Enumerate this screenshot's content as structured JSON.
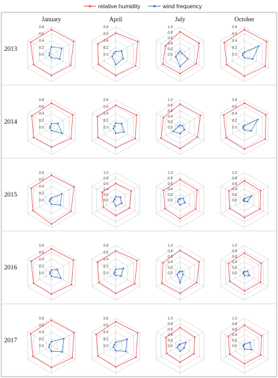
{
  "legend": {
    "relative_humidity": "relative humidity",
    "wind_frequency": "wind frequency"
  },
  "colors": {
    "humidity": "#e8474b",
    "wind": "#2f6fc0",
    "grid": "#bdbdbd"
  },
  "chart_data": {
    "type": "radar",
    "months": [
      "January",
      "April",
      "July",
      "October"
    ],
    "years": [
      "2013",
      "2014",
      "2015",
      "2016",
      "2017"
    ],
    "axes_count": 6,
    "panels": [
      {
        "year": "2013",
        "month": "January",
        "rmax": 0.8,
        "ticks": [
          "0.8",
          "0.6",
          "0.4",
          "0.2",
          "0.0"
        ],
        "humidity": [
          0.72,
          0.75,
          0.65,
          0.62,
          0.6,
          0.7
        ],
        "wind": [
          0.22,
          0.35,
          0.28,
          0.1,
          0.07,
          0.06
        ]
      },
      {
        "year": "2013",
        "month": "April",
        "rmax": 0.8,
        "ticks": [
          "0.8",
          "0.6",
          "0.4",
          "0.2",
          "0.0"
        ],
        "humidity": [
          0.62,
          0.74,
          0.67,
          0.62,
          0.58,
          0.6
        ],
        "wind": [
          0.08,
          0.2,
          0.25,
          0.3,
          0.12,
          0.06
        ]
      },
      {
        "year": "2013",
        "month": "July",
        "rmax": 1.0,
        "ticks": [
          "1.0",
          "0.8",
          "0.6",
          "0.4",
          "0.2",
          "0.0"
        ],
        "humidity": [
          0.82,
          0.8,
          0.68,
          0.7,
          0.72,
          0.62
        ],
        "wind": [
          0.12,
          0.08,
          0.32,
          0.45,
          0.18,
          0.08
        ]
      },
      {
        "year": "2013",
        "month": "October",
        "rmax": 0.8,
        "ticks": [
          "0.8",
          "0.6",
          "0.4",
          "0.2",
          "0.0"
        ],
        "humidity": [
          0.72,
          0.74,
          0.7,
          0.64,
          0.6,
          0.68
        ],
        "wind": [
          0.06,
          0.48,
          0.28,
          0.1,
          0.06,
          0.05
        ]
      },
      {
        "year": "2014",
        "month": "January",
        "rmax": 0.8,
        "ticks": [
          "0.8",
          "0.6",
          "0.4",
          "0.2",
          "0.0"
        ],
        "humidity": [
          0.7,
          0.72,
          0.66,
          0.58,
          0.6,
          0.66
        ],
        "wind": [
          0.1,
          0.22,
          0.36,
          0.1,
          0.05,
          0.04
        ]
      },
      {
        "year": "2014",
        "month": "April",
        "rmax": 0.8,
        "ticks": [
          "0.8",
          "0.6",
          "0.4",
          "0.2",
          "0.0"
        ],
        "humidity": [
          0.64,
          0.7,
          0.66,
          0.6,
          0.6,
          0.62
        ],
        "wind": [
          0.12,
          0.2,
          0.28,
          0.18,
          0.08,
          0.05
        ]
      },
      {
        "year": "2014",
        "month": "July",
        "rmax": 1.0,
        "ticks": [
          "1.0",
          "0.8",
          "0.6",
          "0.4",
          "0.2",
          "0.0"
        ],
        "humidity": [
          0.84,
          0.86,
          0.72,
          0.78,
          0.8,
          0.7
        ],
        "wind": [
          0.08,
          0.1,
          0.18,
          0.24,
          0.3,
          0.06
        ]
      },
      {
        "year": "2014",
        "month": "October",
        "rmax": 0.8,
        "ticks": [
          "0.8",
          "0.6",
          "0.4",
          "0.2",
          "0.0"
        ],
        "humidity": [
          0.7,
          0.72,
          0.7,
          0.64,
          0.62,
          0.7
        ],
        "wind": [
          0.05,
          0.45,
          0.22,
          0.08,
          0.05,
          0.04
        ]
      },
      {
        "year": "2015",
        "month": "January",
        "rmax": 0.8,
        "ticks": [
          "0.8",
          "0.6",
          "0.4",
          "0.2",
          "0.0"
        ],
        "humidity": [
          0.72,
          0.76,
          0.66,
          0.7,
          0.62,
          0.68
        ],
        "wind": [
          0.06,
          0.35,
          0.3,
          0.12,
          0.06,
          0.04
        ]
      },
      {
        "year": "2015",
        "month": "April",
        "rmax": 1.0,
        "ticks": [
          "1.0",
          "0.8",
          "0.6",
          "0.4",
          "0.2",
          "0.0"
        ],
        "humidity": [
          0.6,
          0.66,
          0.58,
          0.56,
          0.52,
          0.56
        ],
        "wind": [
          0.12,
          0.2,
          0.25,
          0.22,
          0.1,
          0.05
        ]
      },
      {
        "year": "2015",
        "month": "July",
        "rmax": 1.0,
        "ticks": [
          "1.0",
          "0.8",
          "0.6",
          "0.4",
          "0.2",
          "0.0"
        ],
        "humidity": [
          0.74,
          0.72,
          0.66,
          0.68,
          0.64,
          0.7
        ],
        "wind": [
          0.05,
          0.12,
          0.2,
          0.18,
          0.1,
          0.05
        ]
      },
      {
        "year": "2015",
        "month": "October",
        "rmax": 1.0,
        "ticks": [
          "1.0",
          "0.8",
          "0.6",
          "0.4",
          "0.2",
          "0.0"
        ],
        "humidity": [
          0.7,
          0.68,
          0.66,
          0.64,
          0.62,
          0.66
        ],
        "wind": [
          0.05,
          0.3,
          0.12,
          0.05,
          0.04,
          0.03
        ]
      },
      {
        "year": "2016",
        "month": "January",
        "rmax": 0.8,
        "ticks": [
          "0.8",
          "0.6",
          "0.4",
          "0.2",
          "0.0"
        ],
        "humidity": [
          0.7,
          0.74,
          0.68,
          0.62,
          0.6,
          0.68
        ],
        "wind": [
          0.08,
          0.2,
          0.32,
          0.1,
          0.05,
          0.04
        ]
      },
      {
        "year": "2016",
        "month": "April",
        "rmax": 0.8,
        "ticks": [
          "0.8",
          "0.6",
          "0.4",
          "0.2",
          "0.0"
        ],
        "humidity": [
          0.64,
          0.72,
          0.64,
          0.6,
          0.56,
          0.62
        ],
        "wind": [
          0.1,
          0.26,
          0.18,
          0.08,
          0.06,
          0.04
        ]
      },
      {
        "year": "2016",
        "month": "July",
        "rmax": 1.0,
        "ticks": [
          "1.0",
          "0.8",
          "0.6",
          "0.4",
          "0.2",
          "0.0"
        ],
        "humidity": [
          0.82,
          0.8,
          0.7,
          0.74,
          0.76,
          0.72
        ],
        "wind": [
          0.06,
          0.1,
          0.12,
          0.36,
          0.12,
          0.05
        ]
      },
      {
        "year": "2016",
        "month": "October",
        "rmax": 1.0,
        "ticks": [
          "1.0",
          "0.8",
          "0.6",
          "0.4",
          "0.2",
          "0.0"
        ],
        "humidity": [
          0.72,
          0.7,
          0.68,
          0.66,
          0.62,
          0.68
        ],
        "wind": [
          0.05,
          0.12,
          0.2,
          0.1,
          0.05,
          0.04
        ]
      },
      {
        "year": "2017",
        "month": "January",
        "rmax": 0.8,
        "ticks": [
          "0.8",
          "0.6",
          "0.4",
          "0.2",
          "0.0"
        ],
        "humidity": [
          0.74,
          0.76,
          0.7,
          0.64,
          0.62,
          0.7
        ],
        "wind": [
          0.12,
          0.42,
          0.36,
          0.16,
          0.08,
          0.06
        ]
      },
      {
        "year": "2017",
        "month": "April",
        "rmax": 0.8,
        "ticks": [
          "0.8",
          "0.6",
          "0.4",
          "0.2",
          "0.0"
        ],
        "humidity": [
          0.7,
          0.74,
          0.68,
          0.62,
          0.6,
          0.66
        ],
        "wind": [
          0.1,
          0.38,
          0.34,
          0.14,
          0.08,
          0.05
        ]
      },
      {
        "year": "2017",
        "month": "July",
        "rmax": 1.0,
        "ticks": [
          "1.0",
          "0.8",
          "0.6",
          "0.4",
          "0.2",
          "0.0"
        ],
        "humidity": [
          0.66,
          0.62,
          0.58,
          0.6,
          0.56,
          0.6
        ],
        "wind": [
          0.06,
          0.24,
          0.16,
          0.2,
          0.12,
          0.05
        ]
      },
      {
        "year": "2017",
        "month": "October",
        "rmax": 1.0,
        "ticks": [
          "1.0",
          "0.8",
          "0.6",
          "0.4",
          "0.2",
          "0.0"
        ],
        "humidity": [
          0.74,
          0.72,
          0.68,
          0.66,
          0.62,
          0.68
        ],
        "wind": [
          0.06,
          0.24,
          0.3,
          0.12,
          0.05,
          0.04
        ]
      }
    ]
  }
}
